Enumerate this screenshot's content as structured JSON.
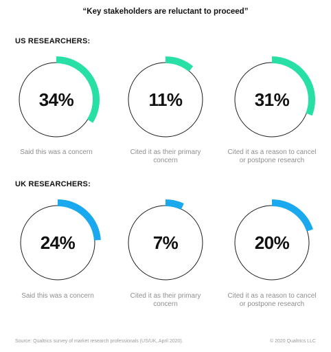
{
  "title": "“Key stakeholders are reluctant to proceed”",
  "footer": {
    "source": "Source: Qualtrics survey of market research professionals (US/UK, April 2020).",
    "copyright": "© 2020 Qualtrics LLC"
  },
  "colors": {
    "us_accent": "#28dfa6",
    "uk_accent": "#1aa8ee",
    "ring_track": "#1a1a1a"
  },
  "chart_data": [
    {
      "type": "pie",
      "title": "US RESEARCHERS:",
      "color": "#28dfa6",
      "items": [
        {
          "value": 34,
          "label": "34%",
          "caption": "Said this was a concern"
        },
        {
          "value": 11,
          "label": "11%",
          "caption": "Cited it as their primary concern"
        },
        {
          "value": 31,
          "label": "31%",
          "caption": "Cited it as a reason to cancel or postpone research"
        }
      ]
    },
    {
      "type": "pie",
      "title": "UK RESEARCHERS:",
      "color": "#1aa8ee",
      "items": [
        {
          "value": 24,
          "label": "24%",
          "caption": "Said this was a concern"
        },
        {
          "value": 7,
          "label": "7%",
          "caption": "Cited it as their primary concern"
        },
        {
          "value": 20,
          "label": "20%",
          "caption": "Cited it as a reason to cancel or postpone research"
        }
      ]
    }
  ]
}
